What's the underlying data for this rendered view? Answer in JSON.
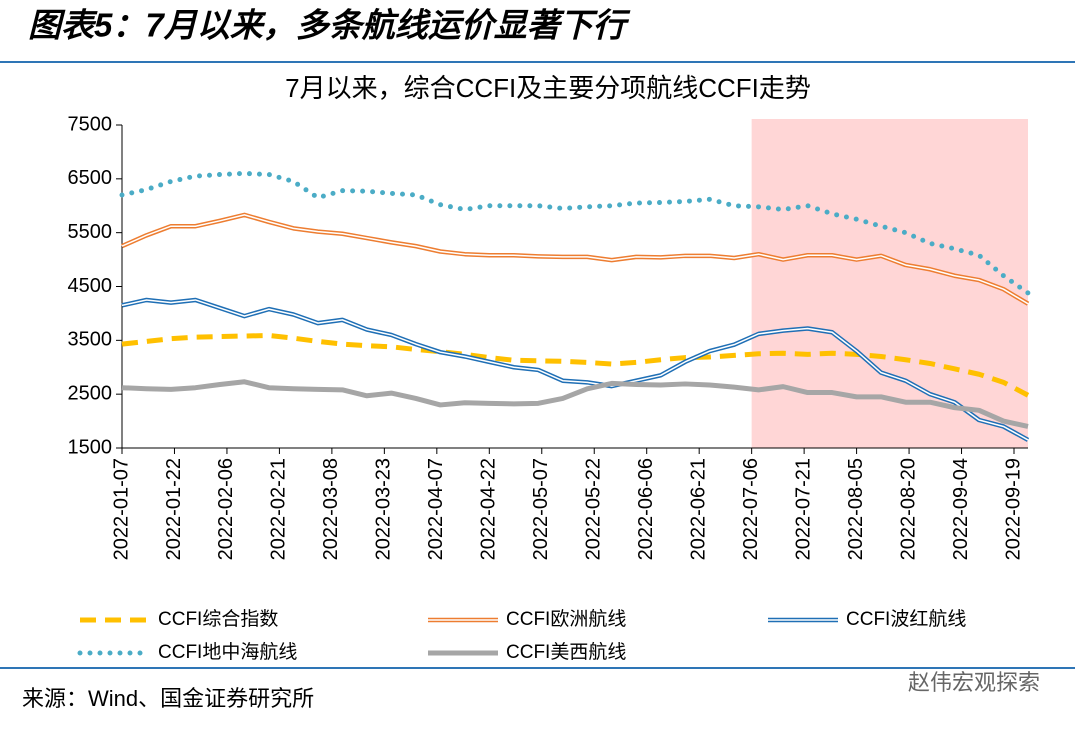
{
  "header": {
    "title": "图表5：7月以来，多条航线运价显著下行"
  },
  "chart_data": {
    "type": "line",
    "title": "7月以来，综合CCFI及主要分项航线CCFI走势",
    "x": [
      "2022-01-07",
      "2022-01-14",
      "2022-01-21",
      "2022-01-28",
      "2022-02-04",
      "2022-02-11",
      "2022-02-18",
      "2022-02-25",
      "2022-03-04",
      "2022-03-11",
      "2022-03-18",
      "2022-03-25",
      "2022-04-01",
      "2022-04-08",
      "2022-04-15",
      "2022-04-22",
      "2022-04-29",
      "2022-05-06",
      "2022-05-13",
      "2022-05-20",
      "2022-05-27",
      "2022-06-03",
      "2022-06-10",
      "2022-06-17",
      "2022-06-24",
      "2022-07-01",
      "2022-07-08",
      "2022-07-15",
      "2022-07-22",
      "2022-07-29",
      "2022-08-05",
      "2022-08-12",
      "2022-08-19",
      "2022-08-26",
      "2022-09-02",
      "2022-09-09",
      "2022-09-16",
      "2022-09-23"
    ],
    "xlim": [
      "2022-01-07",
      "2022-09-23"
    ],
    "xticks": [
      "2022-01-07",
      "2022-01-22",
      "2022-02-06",
      "2022-02-21",
      "2022-03-08",
      "2022-03-23",
      "2022-04-07",
      "2022-04-22",
      "2022-05-07",
      "2022-05-22",
      "2022-06-06",
      "2022-06-21",
      "2022-07-06",
      "2022-07-21",
      "2022-08-05",
      "2022-08-20",
      "2022-09-04",
      "2022-09-19"
    ],
    "ylim": [
      1500,
      7500
    ],
    "yticks": [
      1500,
      2500,
      3500,
      4500,
      5500,
      6500,
      7500
    ],
    "highlight_from": "2022-07-06",
    "highlight_color": "#ffd6d6",
    "series": [
      {
        "name": "CCFI综合指数",
        "color": "#ffc000",
        "style": "dashed",
        "values": [
          3430,
          3480,
          3530,
          3560,
          3570,
          3580,
          3590,
          3540,
          3480,
          3430,
          3400,
          3380,
          3330,
          3290,
          3240,
          3180,
          3130,
          3120,
          3110,
          3090,
          3060,
          3090,
          3140,
          3180,
          3190,
          3220,
          3250,
          3260,
          3240,
          3260,
          3240,
          3200,
          3140,
          3070,
          2970,
          2870,
          2720,
          2480
        ]
      },
      {
        "name": "CCFI欧洲航线",
        "color": "#ed7d31",
        "style": "double",
        "values": [
          5250,
          5450,
          5620,
          5620,
          5720,
          5830,
          5700,
          5580,
          5520,
          5480,
          5400,
          5320,
          5250,
          5150,
          5100,
          5080,
          5080,
          5060,
          5050,
          5050,
          4990,
          5050,
          5040,
          5070,
          5070,
          5030,
          5100,
          5000,
          5080,
          5080,
          5000,
          5070,
          4900,
          4820,
          4700,
          4620,
          4450,
          4180
        ]
      },
      {
        "name": "CCFI波红航线",
        "color": "#1f6fb5",
        "style": "double",
        "values": [
          4150,
          4250,
          4200,
          4250,
          4100,
          3950,
          4080,
          3980,
          3820,
          3880,
          3700,
          3600,
          3430,
          3280,
          3200,
          3100,
          3000,
          2950,
          2750,
          2720,
          2650,
          2750,
          2850,
          3100,
          3300,
          3420,
          3620,
          3680,
          3720,
          3650,
          3300,
          2900,
          2750,
          2500,
          2350,
          2020,
          1900,
          1650
        ]
      },
      {
        "name": "CCFI地中海航线",
        "color": "#4bacc6",
        "style": "dotted",
        "values": [
          6200,
          6300,
          6450,
          6550,
          6580,
          6600,
          6580,
          6450,
          6150,
          6280,
          6270,
          6230,
          6200,
          6020,
          5930,
          6000,
          6000,
          6000,
          5950,
          5980,
          6000,
          6050,
          6060,
          6080,
          6120,
          6000,
          5980,
          5930,
          6000,
          5850,
          5750,
          5620,
          5500,
          5300,
          5200,
          5080,
          4700,
          4380
        ]
      },
      {
        "name": "CCFI美西航线",
        "color": "#a6a6a6",
        "style": "solid",
        "values": [
          2620,
          2600,
          2590,
          2620,
          2680,
          2730,
          2620,
          2600,
          2590,
          2580,
          2470,
          2520,
          2420,
          2300,
          2340,
          2330,
          2320,
          2330,
          2420,
          2600,
          2700,
          2680,
          2670,
          2690,
          2670,
          2630,
          2580,
          2640,
          2530,
          2530,
          2450,
          2450,
          2350,
          2350,
          2250,
          2200,
          2000,
          1900
        ]
      }
    ]
  },
  "source": "来源：Wind、国金证券研究所",
  "watermark": "赵伟宏观探索"
}
